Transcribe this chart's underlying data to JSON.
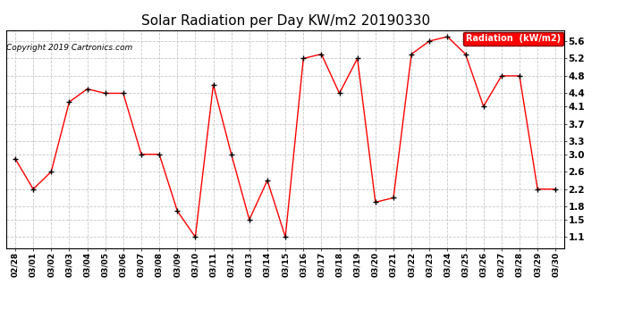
{
  "title": "Solar Radiation per Day KW/m2 20190330",
  "copyright_text": "Copyright 2019 Cartronics.com",
  "legend_label": "Radiation  (kW/m2)",
  "dates": [
    "02/28",
    "03/01",
    "03/02",
    "03/03",
    "03/04",
    "03/05",
    "03/06",
    "03/07",
    "03/08",
    "03/09",
    "03/10",
    "03/11",
    "03/12",
    "03/13",
    "03/14",
    "03/15",
    "03/16",
    "03/17",
    "03/18",
    "03/19",
    "03/20",
    "03/21",
    "03/22",
    "03/23",
    "03/24",
    "03/25",
    "03/26",
    "03/27",
    "03/28",
    "03/29",
    "03/30"
  ],
  "values": [
    2.9,
    2.2,
    2.6,
    4.2,
    4.5,
    4.4,
    4.4,
    3.0,
    3.0,
    1.7,
    1.1,
    4.6,
    3.0,
    1.5,
    2.4,
    1.1,
    5.2,
    5.3,
    4.4,
    5.2,
    1.9,
    2.0,
    5.3,
    5.6,
    5.7,
    5.3,
    4.1,
    4.8,
    4.8,
    2.2,
    2.2
  ],
  "line_color": "red",
  "marker_color": "black",
  "marker_style": "+",
  "background_color": "#ffffff",
  "grid_color": "#c8c8c8",
  "yticks": [
    1.1,
    1.5,
    1.8,
    2.2,
    2.6,
    3.0,
    3.3,
    3.7,
    4.1,
    4.4,
    4.8,
    5.2,
    5.6
  ],
  "ylim": [
    0.85,
    5.85
  ],
  "title_fontsize": 11,
  "tick_fontsize": 6.5,
  "legend_bg_color": "#ff0000",
  "legend_text_color": "#ffffff"
}
